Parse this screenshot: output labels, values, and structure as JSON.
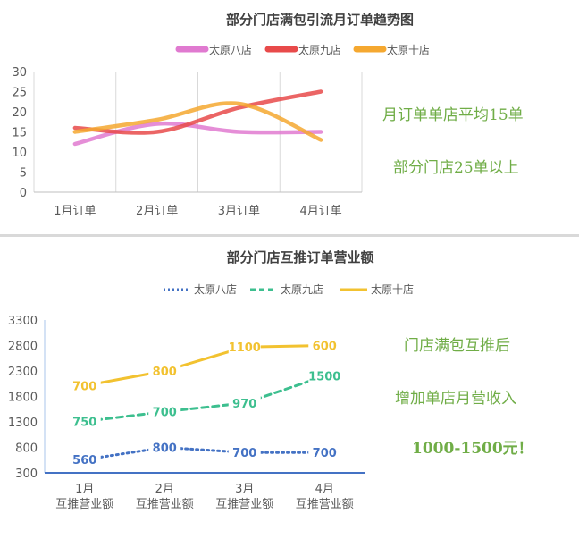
{
  "chart_data": [
    {
      "type": "line",
      "title": "部分门店满包引流月订单趋势图",
      "categories": [
        "1月订单",
        "2月订单",
        "3月订单",
        "4月订单"
      ],
      "series": [
        {
          "name": "太原八店",
          "values": [
            12,
            17,
            15,
            15
          ],
          "color": "#e07ad0"
        },
        {
          "name": "太原九店",
          "values": [
            16,
            15,
            21,
            25
          ],
          "color": "#e84a4a"
        },
        {
          "name": "太原十店",
          "values": [
            15,
            18,
            22,
            13
          ],
          "color": "#f5a830"
        }
      ],
      "ylim": [
        0,
        30
      ],
      "yticks": [
        0,
        5,
        10,
        15,
        20,
        25,
        30
      ],
      "smooth": true,
      "legend": "top",
      "grid": "vertical",
      "notes": [
        "月订单单店平均15单",
        "部分门店25单以上"
      ]
    },
    {
      "type": "line",
      "title": "部分门店互推订单营业额",
      "categories": [
        "1月\n互推营业额",
        "2月\n互推营业额",
        "3月\n互推营业额",
        "4月\n互推营业额"
      ],
      "series": [
        {
          "name": "太原八店",
          "values": [
            560,
            800,
            700,
            700
          ],
          "color": "#4472c4",
          "dash": "dotted"
        },
        {
          "name": "太原九店",
          "values": [
            750,
            700,
            970,
            1500
          ],
          "color": "#3dbf8f",
          "dash": "dashed"
        },
        {
          "name": "太原十店",
          "values": [
            700,
            800,
            1100,
            600
          ],
          "color": "#f2c230",
          "dash": "solid"
        }
      ],
      "plotted_values": {
        "太原八店": [
          560,
          800,
          700,
          700
        ],
        "太原九店": [
          1310,
          1500,
          1670,
          2200
        ],
        "太原十店": [
          2010,
          2300,
          2770,
          2800
        ]
      },
      "ylim": [
        300,
        3300
      ],
      "yticks": [
        300,
        800,
        1300,
        1800,
        2300,
        2800,
        3300
      ],
      "legend": "top",
      "grid": "none",
      "notes": [
        "门店满包互推后",
        "增加单店月营收入",
        "1000-1500元！"
      ]
    }
  ]
}
